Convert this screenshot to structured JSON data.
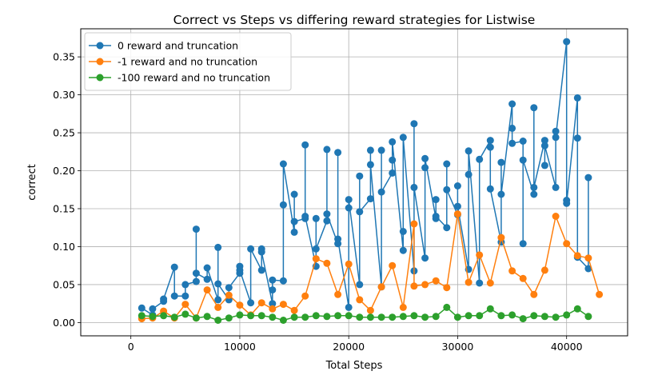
{
  "chart_data": {
    "type": "line",
    "title": "Correct vs Steps vs differing reward strategies for Listwise",
    "xlabel": "Total Steps",
    "ylabel": "correct",
    "xlim": [
      -4600,
      45600
    ],
    "ylim": [
      -0.0175,
      0.387
    ],
    "xticks": [
      0,
      10000,
      20000,
      30000,
      40000
    ],
    "xtick_labels": [
      "0",
      "10000",
      "20000",
      "30000",
      "40000"
    ],
    "yticks": [
      0.0,
      0.05,
      0.1,
      0.15,
      0.2,
      0.25,
      0.3,
      0.35
    ],
    "ytick_labels": [
      "0.00",
      "0.05",
      "0.10",
      "0.15",
      "0.20",
      "0.25",
      "0.30",
      "0.35"
    ],
    "grid": true,
    "legend_position": "upper-left",
    "series": [
      {
        "name": "0 reward and truncation",
        "color": "#1f77b4",
        "x": [
          1000,
          2000,
          2000,
          3000,
          3000,
          4000,
          4000,
          5000,
          5000,
          6000,
          6000,
          6000,
          7000,
          7000,
          8000,
          8000,
          8000,
          9000,
          9000,
          10000,
          10000,
          10000,
          11000,
          11000,
          12000,
          12000,
          12000,
          13000,
          13000,
          13000,
          14000,
          14000,
          14000,
          15000,
          15000,
          15000,
          16000,
          16000,
          16000,
          17000,
          17000,
          17000,
          18000,
          18000,
          18000,
          19000,
          19000,
          19000,
          20000,
          20000,
          20000,
          21000,
          21000,
          21000,
          22000,
          22000,
          22000,
          23000,
          23000,
          23000,
          24000,
          24000,
          24000,
          25000,
          25000,
          25000,
          26000,
          26000,
          26000,
          27000,
          27000,
          27000,
          28000,
          28000,
          28000,
          29000,
          29000,
          29000,
          30000,
          30000,
          30000,
          31000,
          31000,
          31000,
          32000,
          32000,
          33000,
          33000,
          33000,
          34000,
          34000,
          34000,
          35000,
          35000,
          35000,
          36000,
          36000,
          36000,
          37000,
          37000,
          37000,
          38000,
          38000,
          38000,
          39000,
          39000,
          39000,
          40000,
          40000,
          40000,
          41000,
          41000,
          41000,
          42000,
          42000
        ],
        "y": [
          0.019,
          0.01,
          0.018,
          0.028,
          0.031,
          0.073,
          0.035,
          0.035,
          0.05,
          0.054,
          0.123,
          0.065,
          0.057,
          0.072,
          0.03,
          0.099,
          0.051,
          0.03,
          0.046,
          0.065,
          0.074,
          0.069,
          0.026,
          0.097,
          0.069,
          0.097,
          0.093,
          0.025,
          0.043,
          0.056,
          0.055,
          0.155,
          0.209,
          0.119,
          0.169,
          0.133,
          0.137,
          0.234,
          0.14,
          0.074,
          0.137,
          0.097,
          0.134,
          0.228,
          0.143,
          0.104,
          0.224,
          0.11,
          0.02,
          0.151,
          0.162,
          0.05,
          0.193,
          0.146,
          0.163,
          0.227,
          0.208,
          0.047,
          0.227,
          0.172,
          0.197,
          0.214,
          0.238,
          0.095,
          0.12,
          0.244,
          0.068,
          0.262,
          0.178,
          0.085,
          0.204,
          0.216,
          0.137,
          0.162,
          0.14,
          0.125,
          0.209,
          0.175,
          0.142,
          0.18,
          0.153,
          0.07,
          0.195,
          0.226,
          0.052,
          0.215,
          0.24,
          0.231,
          0.176,
          0.106,
          0.211,
          0.169,
          0.288,
          0.256,
          0.236,
          0.239,
          0.104,
          0.214,
          0.169,
          0.283,
          0.178,
          0.24,
          0.207,
          0.233,
          0.178,
          0.252,
          0.244,
          0.37,
          0.161,
          0.157,
          0.296,
          0.243,
          0.086,
          0.071,
          0.191
        ]
      },
      {
        "name": "-1 reward and no truncation",
        "color": "#ff7f0e",
        "x": [
          1000,
          2000,
          3000,
          4000,
          5000,
          6000,
          7000,
          8000,
          9000,
          10000,
          11000,
          12000,
          13000,
          14000,
          15000,
          16000,
          17000,
          18000,
          19000,
          20000,
          21000,
          22000,
          23000,
          24000,
          25000,
          26000,
          26000,
          27000,
          28000,
          29000,
          30000,
          31000,
          32000,
          33000,
          34000,
          35000,
          36000,
          37000,
          38000,
          39000,
          40000,
          41000,
          42000,
          43000
        ],
        "y": [
          0.005,
          0.006,
          0.015,
          0.006,
          0.024,
          0.006,
          0.043,
          0.02,
          0.036,
          0.023,
          0.01,
          0.026,
          0.018,
          0.024,
          0.016,
          0.035,
          0.084,
          0.078,
          0.037,
          0.077,
          0.03,
          0.016,
          0.047,
          0.075,
          0.02,
          0.13,
          0.048,
          0.05,
          0.055,
          0.046,
          0.143,
          0.053,
          0.089,
          0.052,
          0.112,
          0.068,
          0.058,
          0.037,
          0.069,
          0.14,
          0.104,
          0.088,
          0.085,
          0.037
        ]
      },
      {
        "name": "-100 reward and no truncation",
        "color": "#2ca02c",
        "x": [
          1000,
          2000,
          3000,
          4000,
          5000,
          6000,
          7000,
          8000,
          9000,
          10000,
          11000,
          12000,
          13000,
          14000,
          15000,
          16000,
          17000,
          18000,
          19000,
          20000,
          21000,
          22000,
          23000,
          24000,
          25000,
          26000,
          27000,
          28000,
          29000,
          30000,
          31000,
          32000,
          33000,
          34000,
          35000,
          36000,
          37000,
          38000,
          39000,
          40000,
          41000,
          42000
        ],
        "y": [
          0.009,
          0.008,
          0.009,
          0.007,
          0.011,
          0.006,
          0.008,
          0.003,
          0.006,
          0.01,
          0.009,
          0.009,
          0.007,
          0.003,
          0.007,
          0.007,
          0.009,
          0.008,
          0.009,
          0.009,
          0.007,
          0.007,
          0.007,
          0.007,
          0.008,
          0.009,
          0.007,
          0.008,
          0.02,
          0.007,
          0.009,
          0.009,
          0.018,
          0.009,
          0.01,
          0.005,
          0.009,
          0.008,
          0.007,
          0.01,
          0.018,
          0.008
        ]
      }
    ]
  }
}
